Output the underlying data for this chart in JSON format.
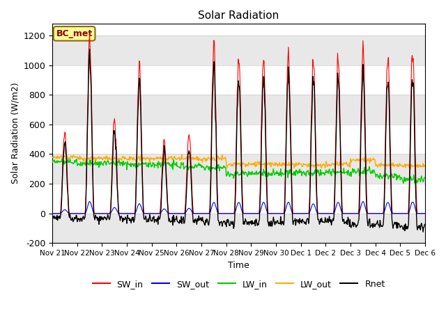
{
  "title": "Solar Radiation",
  "xlabel": "Time",
  "ylabel": "Solar Radiation (W/m2)",
  "ylim": [
    -200,
    1280
  ],
  "yticks": [
    -200,
    0,
    200,
    400,
    600,
    800,
    1000,
    1200
  ],
  "x_tick_labels": [
    "Nov 21",
    "Nov 22",
    "Nov 23",
    "Nov 24",
    "Nov 25",
    "Nov 26",
    "Nov 27",
    "Nov 28",
    "Nov 29",
    "Nov 30",
    "Dec 1",
    "Dec 2",
    "Dec 3",
    "Dec 4",
    "Dec 5",
    "Dec 6"
  ],
  "n_days": 15,
  "dt": 0.5,
  "station_label": "BC_met",
  "colors": {
    "SW_in": "#ff0000",
    "SW_out": "#0000ff",
    "LW_in": "#00cc00",
    "LW_out": "#ffaa00",
    "Rnet": "#000000"
  },
  "legend_entries": [
    "SW_in",
    "SW_out",
    "LW_in",
    "LW_out",
    "Rnet"
  ],
  "SW_in_peaks": [
    560,
    1190,
    640,
    1000,
    480,
    540,
    1150,
    1060,
    1040,
    1060,
    1030,
    1050,
    1130,
    1050,
    1090
  ],
  "SW_out_peaks": [
    25,
    80,
    40,
    65,
    30,
    35,
    75,
    75,
    75,
    75,
    65,
    75,
    80,
    75,
    78
  ],
  "LW_in_base": [
    350,
    340,
    340,
    330,
    330,
    320,
    310,
    265,
    270,
    275,
    275,
    280,
    285,
    250,
    230
  ],
  "LW_out_base": [
    380,
    370,
    370,
    370,
    370,
    370,
    370,
    330,
    330,
    330,
    325,
    330,
    360,
    325,
    320
  ],
  "band_colors": [
    "#e8e8e8",
    "#ffffff"
  ],
  "figsize": [
    6.4,
    4.8
  ],
  "dpi": 100
}
